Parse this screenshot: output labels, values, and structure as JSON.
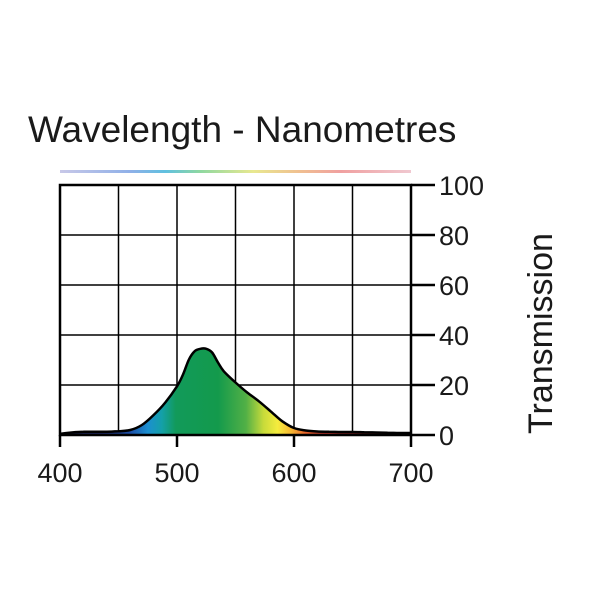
{
  "chart_data": {
    "type": "area",
    "title": "Wavelength - Nanometres",
    "xlabel": "",
    "ylabel": "Transmission",
    "xlim": [
      400,
      700
    ],
    "ylim": [
      0,
      100
    ],
    "x_ticks": [
      400,
      500,
      600,
      700
    ],
    "y_ticks": [
      0,
      20,
      40,
      60,
      80,
      100
    ],
    "grid": true,
    "y_axis_side": "right",
    "fill": "visible spectrum colors",
    "x": [
      400,
      410,
      420,
      430,
      440,
      450,
      460,
      470,
      480,
      490,
      500,
      505,
      510,
      515,
      520,
      525,
      530,
      535,
      540,
      550,
      560,
      570,
      580,
      590,
      600,
      610,
      620,
      630,
      640,
      650,
      660,
      670,
      680,
      690,
      700
    ],
    "values": [
      0.5,
      1.0,
      1.3,
      1.3,
      1.3,
      1.5,
      2.0,
      4.0,
      8.0,
      13.0,
      19.5,
      24.0,
      30.0,
      33.5,
      34.5,
      34.5,
      33.0,
      29.0,
      25.5,
      21.0,
      17.0,
      13.5,
      9.5,
      5.5,
      2.8,
      1.8,
      1.4,
      1.3,
      1.2,
      1.2,
      1.1,
      1.0,
      0.9,
      0.8,
      0.8
    ]
  }
}
